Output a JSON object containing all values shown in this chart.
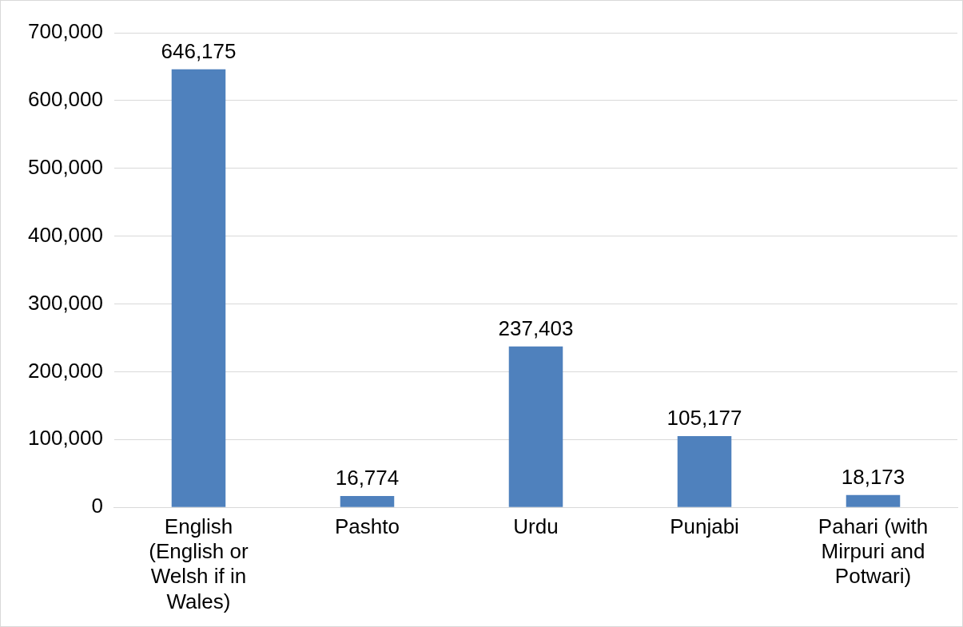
{
  "chart_data": {
    "type": "bar",
    "categories": [
      "English (English or Welsh if in Wales)",
      "Pashto",
      "Urdu",
      "Punjabi",
      "Pahari (with Mirpuri and Potwari)"
    ],
    "values": [
      646175,
      16774,
      237403,
      105177,
      18173
    ],
    "color": "#4f81bd",
    "ylim": [
      0,
      700000
    ],
    "yticks": [
      {
        "value": 0,
        "label": "0"
      },
      {
        "value": 100000,
        "label": "100,000"
      },
      {
        "value": 200000,
        "label": "200,000"
      },
      {
        "value": 300000,
        "label": "300,000"
      },
      {
        "value": 400000,
        "label": "400,000"
      },
      {
        "value": 500000,
        "label": "500,000"
      },
      {
        "value": 600000,
        "label": "600,000"
      },
      {
        "value": 700000,
        "label": "700,000"
      }
    ],
    "grid": "y",
    "value_labels": [
      "646,175",
      "16,774",
      "237,403",
      "105,177",
      "18,173"
    ],
    "legend": false
  }
}
